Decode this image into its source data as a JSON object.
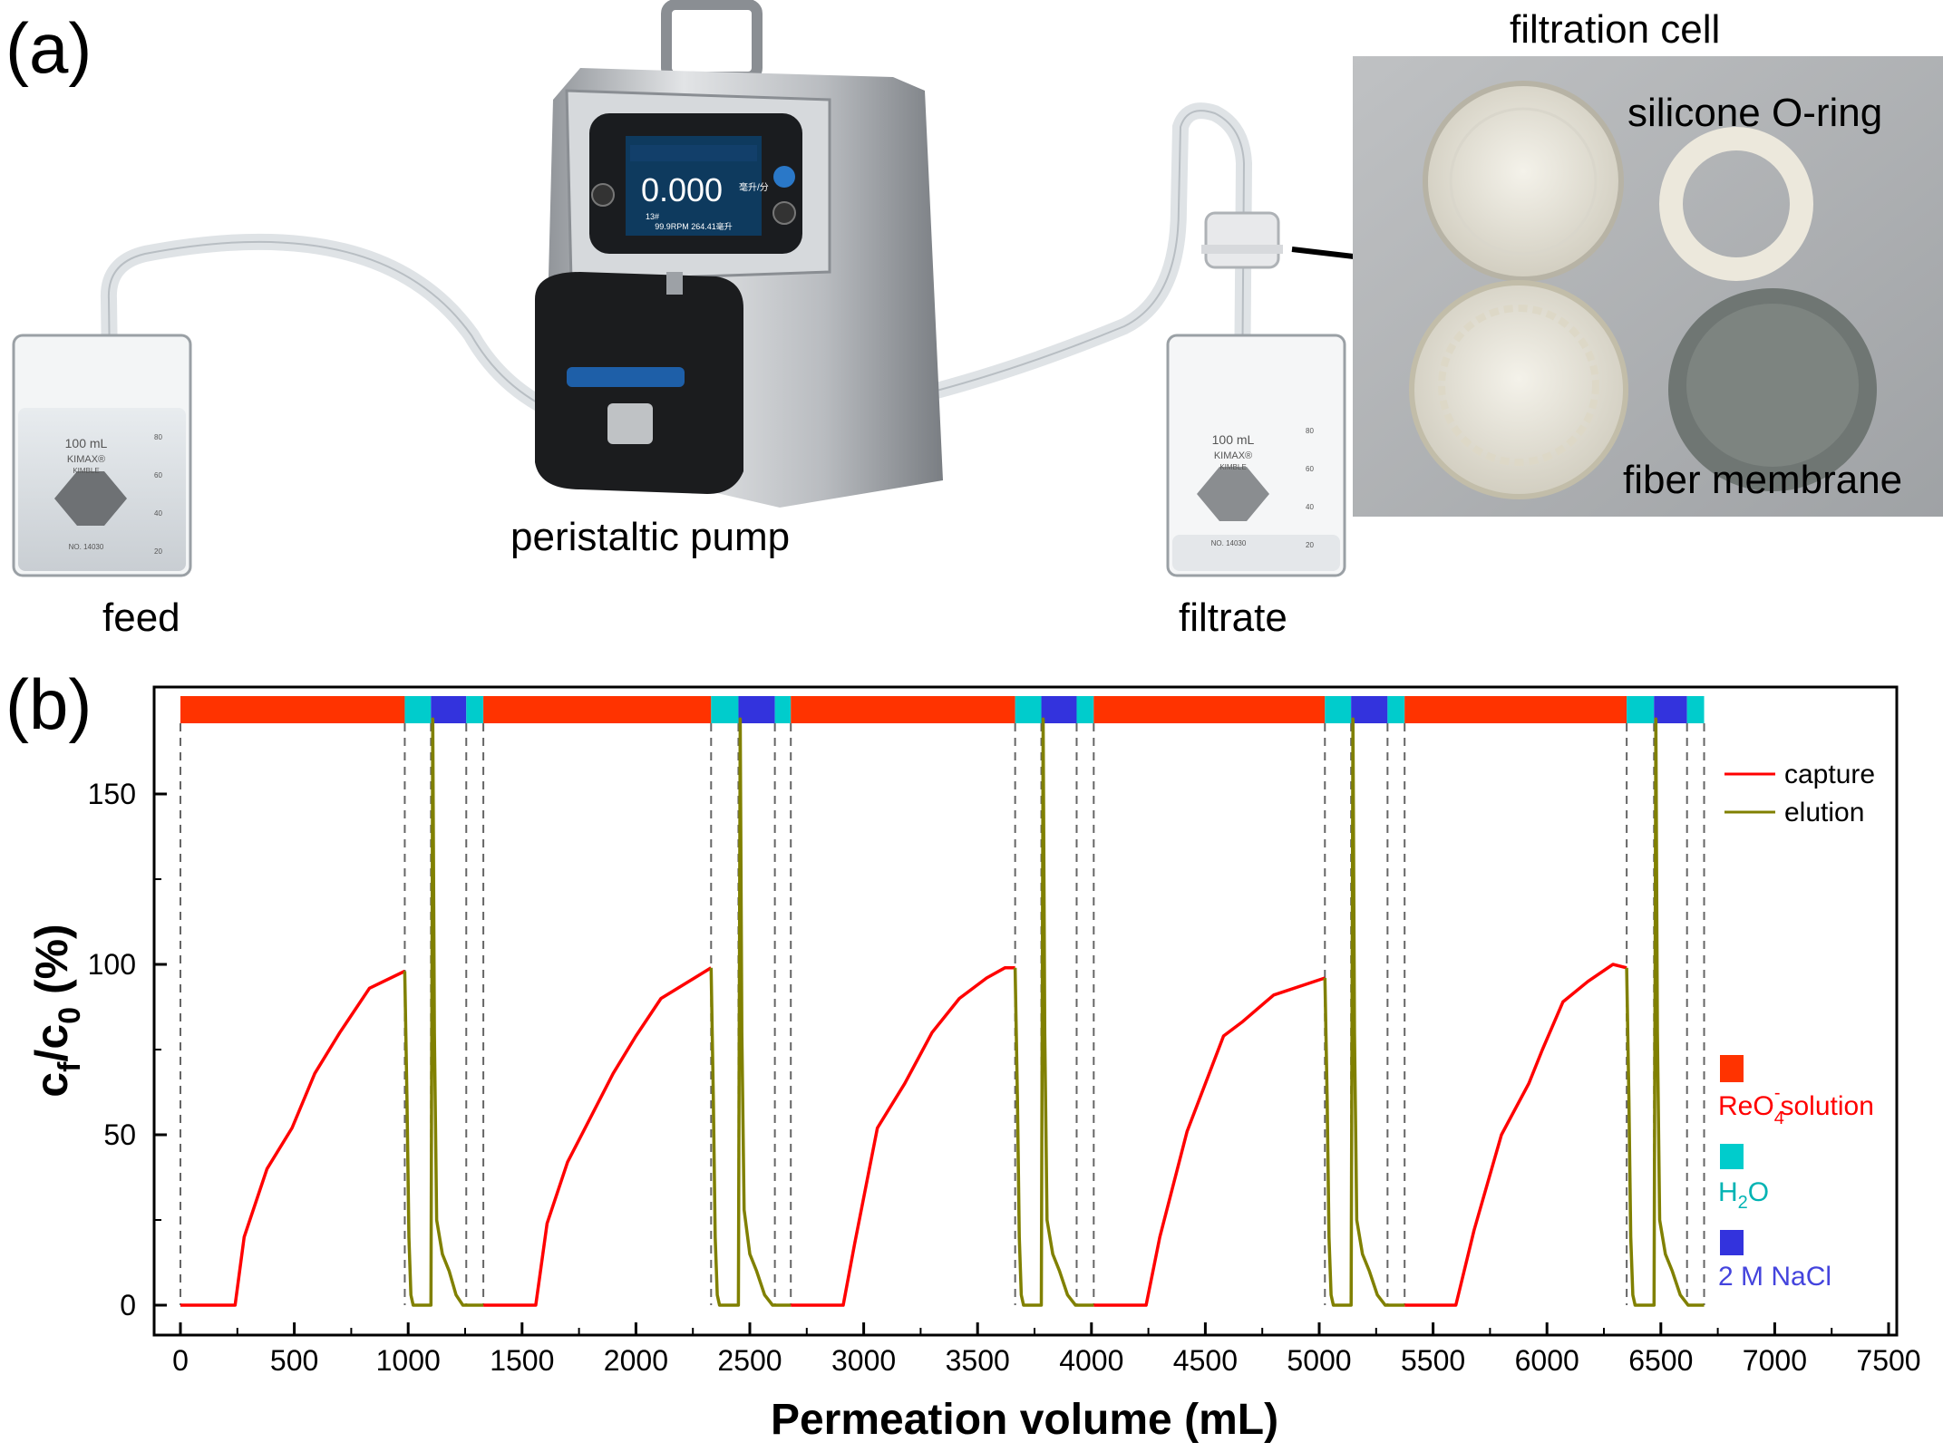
{
  "panel_a": {
    "label": "(a)",
    "captions": {
      "feed": "feed",
      "pump": "peristaltic pump",
      "filtrate": "filtrate",
      "cell": "filtration cell",
      "oring": "silicone O-ring",
      "membrane": "fiber membrane"
    },
    "beaker_feed": {
      "volume": "100 mL",
      "brand": "KIMAX®",
      "maker": "KIMBLE",
      "no": "NO. 14030",
      "ticks": [
        "80",
        "60",
        "40",
        "20"
      ]
    },
    "beaker_filtrate": {
      "volume": "100 mL",
      "brand": "KIMAX®",
      "maker": "KIMBLE",
      "no": "NO. 14030",
      "ticks": [
        "80",
        "60",
        "40",
        "20"
      ]
    },
    "pump_display": {
      "reading": "0.000",
      "unit": "毫升/分",
      "status": "99.9RPM 264.41毫升",
      "mode": "13#"
    }
  },
  "panel_b": {
    "label": "(b)",
    "chart_data": {
      "type": "line",
      "xlabel": "Permeation volume (mL)",
      "ylabel": "c_f/c_0 (%)",
      "xlim": [
        0,
        7500
      ],
      "ylim": [
        -5,
        175
      ],
      "xticks": [
        0,
        500,
        1000,
        1500,
        2000,
        2500,
        3000,
        3500,
        4000,
        4500,
        5000,
        5500,
        6000,
        6500,
        7000,
        7500
      ],
      "yticks": [
        0,
        50,
        100,
        150
      ],
      "legend": {
        "placement": "right",
        "entries": [
          {
            "name": "capture",
            "color": "#ff0000"
          },
          {
            "name": "elution",
            "color": "#808000"
          }
        ]
      },
      "stage_legend": [
        {
          "label": "ReO4-solution",
          "color": "#ff3300",
          "text_color": "#ff0000"
        },
        {
          "label": "H2O",
          "color": "#00cccc",
          "text_color": "#00b3b3"
        },
        {
          "label": "2 M NaCl",
          "color": "#3333dd",
          "text_color": "#4444dd"
        }
      ],
      "stages": [
        {
          "type": "ReO4",
          "x0": 0,
          "x1": 985
        },
        {
          "type": "H2O",
          "x0": 985,
          "x1": 1100
        },
        {
          "type": "NaCl",
          "x0": 1100,
          "x1": 1255
        },
        {
          "type": "H2O",
          "x0": 1255,
          "x1": 1330
        },
        {
          "type": "ReO4",
          "x0": 1330,
          "x1": 2330
        },
        {
          "type": "H2O",
          "x0": 2330,
          "x1": 2450
        },
        {
          "type": "NaCl",
          "x0": 2450,
          "x1": 2610
        },
        {
          "type": "H2O",
          "x0": 2610,
          "x1": 2680
        },
        {
          "type": "ReO4",
          "x0": 2680,
          "x1": 3665
        },
        {
          "type": "H2O",
          "x0": 3665,
          "x1": 3780
        },
        {
          "type": "NaCl",
          "x0": 3780,
          "x1": 3935
        },
        {
          "type": "H2O",
          "x0": 3935,
          "x1": 4010
        },
        {
          "type": "ReO4",
          "x0": 4010,
          "x1": 5025
        },
        {
          "type": "H2O",
          "x0": 5025,
          "x1": 5140
        },
        {
          "type": "NaCl",
          "x0": 5140,
          "x1": 5300
        },
        {
          "type": "H2O",
          "x0": 5300,
          "x1": 5375
        },
        {
          "type": "ReO4",
          "x0": 5375,
          "x1": 6350
        },
        {
          "type": "H2O",
          "x0": 6350,
          "x1": 6470
        },
        {
          "type": "NaCl",
          "x0": 6470,
          "x1": 6615
        },
        {
          "type": "H2O",
          "x0": 6615,
          "x1": 6690
        }
      ],
      "dashed_x": [
        0,
        985,
        1100,
        1255,
        1330,
        2330,
        2450,
        2610,
        2680,
        3665,
        3780,
        3935,
        4010,
        5025,
        5140,
        5300,
        5375,
        6350,
        6470,
        6615,
        6690
      ],
      "series": [
        {
          "name": "capture",
          "color": "#ff0000",
          "segments": [
            [
              [
                0,
                0
              ],
              [
                240,
                0
              ],
              [
                280,
                20
              ],
              [
                380,
                40
              ],
              [
                490,
                52
              ],
              [
                590,
                68
              ],
              [
                700,
                80
              ],
              [
                830,
                93
              ],
              [
                985,
                98
              ]
            ],
            [
              [
                1330,
                0
              ],
              [
                1560,
                0
              ],
              [
                1610,
                24
              ],
              [
                1700,
                42
              ],
              [
                1800,
                55
              ],
              [
                1900,
                68
              ],
              [
                2000,
                79
              ],
              [
                2110,
                90
              ],
              [
                2330,
                99
              ]
            ],
            [
              [
                2680,
                0
              ],
              [
                2910,
                0
              ],
              [
                2960,
                18
              ],
              [
                3060,
                52
              ],
              [
                3180,
                65
              ],
              [
                3300,
                80
              ],
              [
                3420,
                90
              ],
              [
                3540,
                96
              ],
              [
                3620,
                99
              ],
              [
                3665,
                99
              ]
            ],
            [
              [
                4010,
                0
              ],
              [
                4240,
                0
              ],
              [
                4300,
                20
              ],
              [
                4420,
                51
              ],
              [
                4580,
                79
              ],
              [
                4660,
                83
              ],
              [
                4800,
                91
              ],
              [
                5025,
                96
              ]
            ],
            [
              [
                5375,
                0
              ],
              [
                5600,
                0
              ],
              [
                5680,
                22
              ],
              [
                5800,
                50
              ],
              [
                5920,
                65
              ],
              [
                5980,
                75
              ],
              [
                6070,
                89
              ],
              [
                6180,
                95
              ],
              [
                6290,
                100
              ],
              [
                6350,
                99
              ]
            ]
          ]
        },
        {
          "name": "elution",
          "color": "#808000",
          "segments": [
            [
              [
                985,
                98
              ],
              [
                995,
                60
              ],
              [
                1003,
                20
              ],
              [
                1012,
                3
              ],
              [
                1022,
                0
              ],
              [
                1100,
                0
              ],
              [
                1108,
                172
              ],
              [
                1115,
                80
              ],
              [
                1125,
                25
              ],
              [
                1150,
                15
              ],
              [
                1180,
                10
              ],
              [
                1210,
                3
              ],
              [
                1240,
                0
              ],
              [
                1330,
                0
              ]
            ],
            [
              [
                2330,
                99
              ],
              [
                2340,
                60
              ],
              [
                2348,
                20
              ],
              [
                2357,
                3
              ],
              [
                2367,
                0
              ],
              [
                2450,
                0
              ],
              [
                2458,
                172
              ],
              [
                2465,
                80
              ],
              [
                2475,
                28
              ],
              [
                2500,
                15
              ],
              [
                2530,
                10
              ],
              [
                2565,
                3
              ],
              [
                2600,
                0
              ],
              [
                2680,
                0
              ]
            ],
            [
              [
                3665,
                99
              ],
              [
                3675,
                60
              ],
              [
                3683,
                20
              ],
              [
                3692,
                3
              ],
              [
                3702,
                0
              ],
              [
                3780,
                0
              ],
              [
                3788,
                172
              ],
              [
                3795,
                80
              ],
              [
                3805,
                25
              ],
              [
                3830,
                15
              ],
              [
                3860,
                10
              ],
              [
                3895,
                3
              ],
              [
                3930,
                0
              ],
              [
                4010,
                0
              ]
            ],
            [
              [
                5025,
                96
              ],
              [
                5035,
                60
              ],
              [
                5043,
                20
              ],
              [
                5052,
                3
              ],
              [
                5062,
                0
              ],
              [
                5140,
                0
              ],
              [
                5148,
                172
              ],
              [
                5155,
                80
              ],
              [
                5165,
                25
              ],
              [
                5190,
                15
              ],
              [
                5220,
                10
              ],
              [
                5255,
                3
              ],
              [
                5290,
                0
              ],
              [
                5375,
                0
              ]
            ],
            [
              [
                6350,
                99
              ],
              [
                6360,
                60
              ],
              [
                6368,
                20
              ],
              [
                6377,
                3
              ],
              [
                6387,
                0
              ],
              [
                6470,
                0
              ],
              [
                6478,
                172
              ],
              [
                6485,
                80
              ],
              [
                6495,
                25
              ],
              [
                6520,
                15
              ],
              [
                6550,
                10
              ],
              [
                6585,
                3
              ],
              [
                6620,
                0
              ],
              [
                6690,
                0
              ]
            ]
          ]
        }
      ]
    }
  }
}
